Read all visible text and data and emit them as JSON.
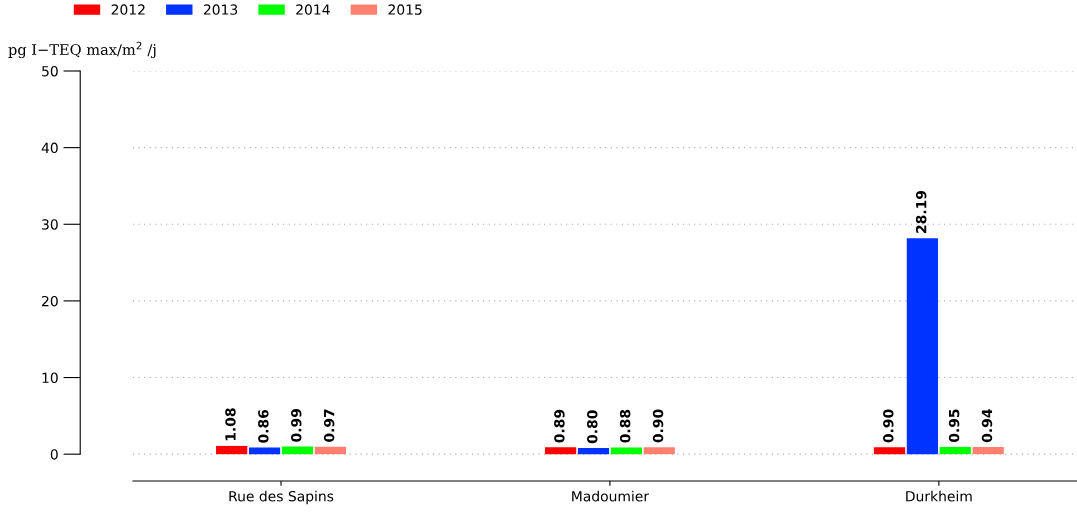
{
  "chart_data": {
    "type": "bar",
    "ylabel": "pg I−TEQ max/m$^{2}$ /j",
    "categories": [
      "Rue des Sapins",
      "Madoumier",
      "Durkheim"
    ],
    "series": [
      {
        "name": "2012",
        "color": "#ff0000",
        "values": [
          1.08,
          0.89,
          0.9
        ],
        "value_labels": [
          "1.08",
          "0.89",
          "0.90"
        ]
      },
      {
        "name": "2013",
        "color": "#0033ff",
        "values": [
          0.86,
          0.8,
          28.19
        ],
        "value_labels": [
          "0.86",
          "0.80",
          "28.19"
        ]
      },
      {
        "name": "2014",
        "color": "#00ff00",
        "values": [
          0.99,
          0.88,
          0.95
        ],
        "value_labels": [
          "0.99",
          "0.88",
          "0.95"
        ]
      },
      {
        "name": "2015",
        "color": "#ff8070",
        "values": [
          0.97,
          0.9,
          0.94
        ],
        "value_labels": [
          "0.97",
          "0.90",
          "0.94"
        ]
      }
    ],
    "ylim": [
      -3.5,
      50
    ],
    "yticks": [
      0,
      10,
      20,
      30,
      40,
      50
    ],
    "grid": "y",
    "legend": "top left"
  }
}
